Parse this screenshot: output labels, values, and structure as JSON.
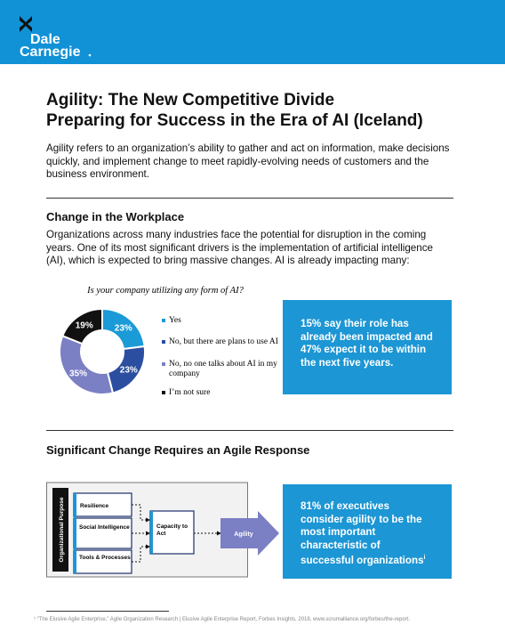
{
  "header": {
    "logo_line1": "Dale",
    "logo_line2": "Carnegie"
  },
  "title": {
    "line1": "Agility: The New Competitive Divide",
    "line2": "Preparing for Success in the Era of AI (Iceland)"
  },
  "intro": "Agility refers to an organization’s ability to gather and act on information, make decisions quickly, and implement change to meet rapidly-evolving needs of customers and the business environment.",
  "section1": {
    "heading": "Change in the Workplace",
    "paragraph": "Organizations across many industries face the potential for disruption in the coming years. One of its most significant drivers is the implementation of artificial intelligence (AI), which is expected to bring massive changes. AI is already impacting many:",
    "callout": "15% say their role has already been impacted and 47% expect it to be within the next five years."
  },
  "chart_data": {
    "type": "donut",
    "title": "Is your company utilizing any form of AI?",
    "categories": [
      "Yes",
      "No, but there are plans to use AI",
      "No, no one talks about AI in my company",
      "I’m not sure"
    ],
    "values": [
      23,
      23,
      35,
      19
    ],
    "value_labels": [
      "23%",
      "23%",
      "35%",
      "19%"
    ],
    "colors": [
      "#1a9ad6",
      "#2b4ea0",
      "#7b7fc4",
      "#111111"
    ]
  },
  "section2": {
    "heading": "Significant Change Requires an Agile Response",
    "diagram": {
      "side_label": "Organizational Purpose",
      "box1": "Resilience",
      "box2": "Social Intelligence",
      "box3": "Tools & Processes",
      "center": "Capacity to Act",
      "arrow": "Agility"
    },
    "callout": "81% of executives consider agility to be the most important characteristic of successful organizations",
    "callout_note": "i"
  },
  "footnote": "¹ “The Elusive Agile Enterprise,” Agile Organization Research | Elusive Agile Enterprise Report, Forbes Insights, 2018, www.scrumalliance.org/forbes/the-report."
}
